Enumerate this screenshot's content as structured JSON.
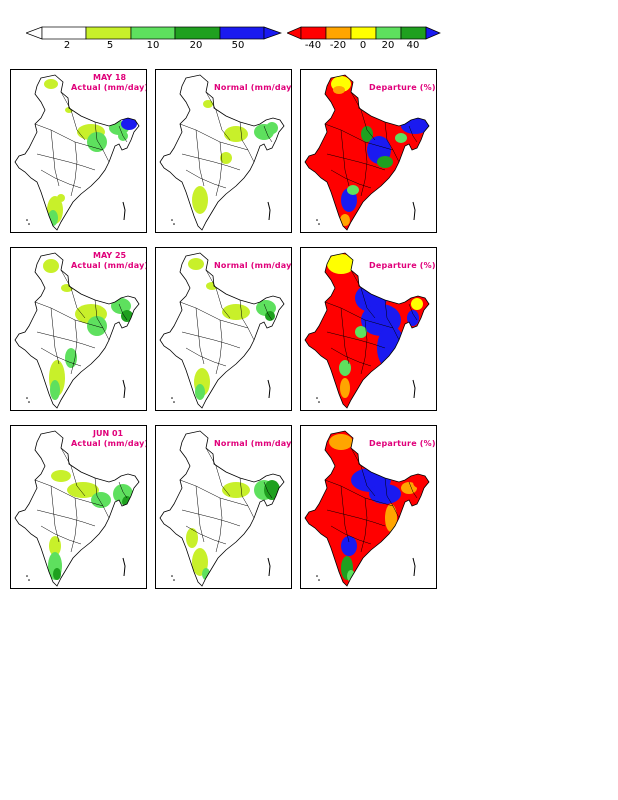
{
  "colorbars": {
    "rainfall": {
      "labels": [
        "2",
        "5",
        "10",
        "20",
        "50"
      ],
      "colors": [
        "#ffffff",
        "#c8f02a",
        "#5ee05e",
        "#1fa01f",
        "#1a1af0",
        "#1a1af0"
      ]
    },
    "departure": {
      "labels": [
        "-40",
        "-20",
        "0",
        "20",
        "40"
      ],
      "colors": [
        "#ff0000",
        "#ff0000",
        "#ffa500",
        "#ffff00",
        "#5ee05e",
        "#1fa01f",
        "#1a1af0"
      ]
    }
  },
  "rows": [
    {
      "date": "MAY 18",
      "actual_title": "Actual (mm/day)",
      "normal_title": "Normal (mm/day)",
      "departure_title": "Departure (%)"
    },
    {
      "date": "MAY 25",
      "actual_title": "Actual (mm/day)",
      "normal_title": "Normal (mm/day)",
      "departure_title": "Departure (%)"
    },
    {
      "date": "JUN 01",
      "actual_title": "Actual (mm/day)",
      "normal_title": "Normal (mm/day)",
      "departure_title": "Departure (%)"
    }
  ],
  "palette": {
    "light": "#c8f02a",
    "mid": "#5ee05e",
    "dark": "#1fa01f",
    "blue": "#1a1af0",
    "red": "#ff0000",
    "orange": "#ffa500",
    "yellow": "#ffff00",
    "title": "#e0007a"
  }
}
